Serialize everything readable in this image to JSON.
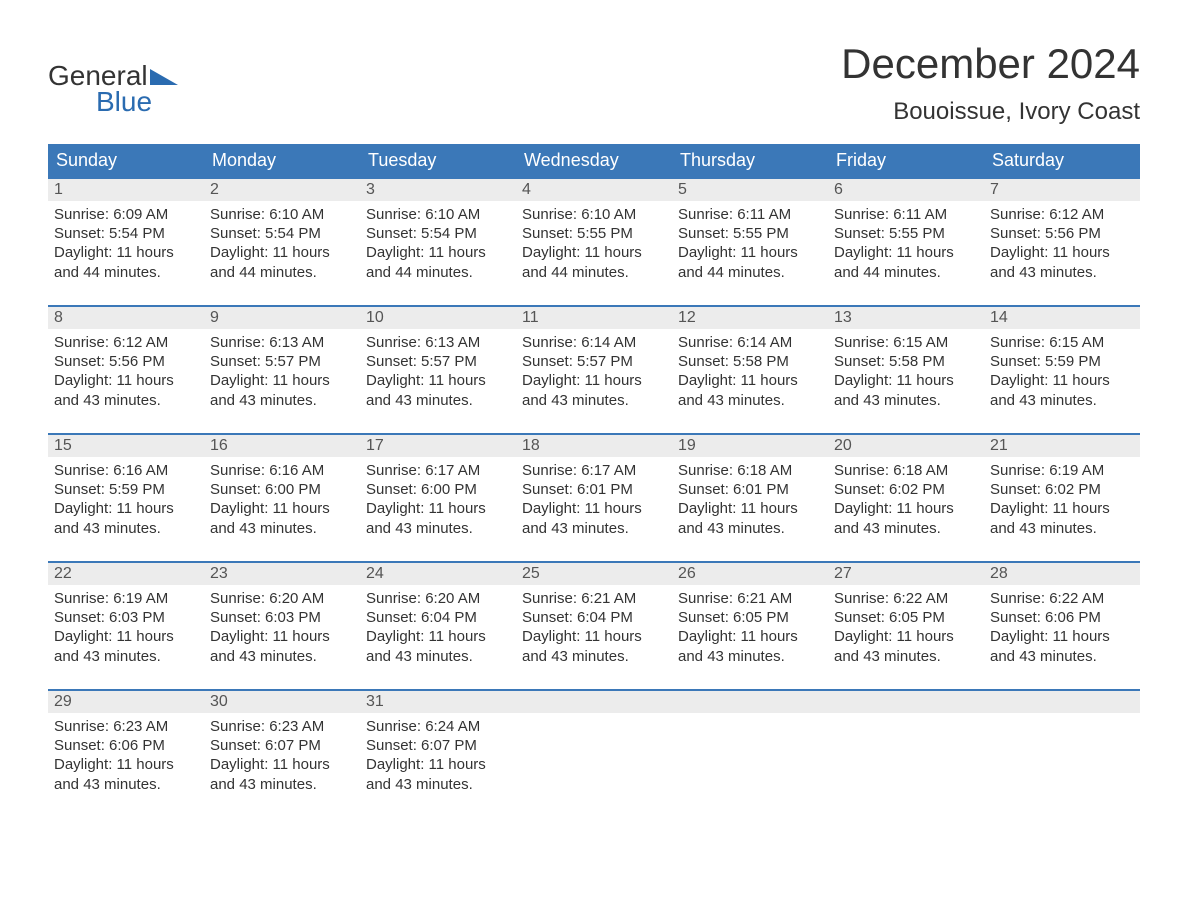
{
  "brand": {
    "word1": "General",
    "word2": "Blue",
    "triangle_color": "#2a6bb0"
  },
  "title": "December 2024",
  "location": "Bouoissue, Ivory Coast",
  "colors": {
    "header_bg": "#3b78b8",
    "header_text": "#ffffff",
    "daybar_bg": "#ececec",
    "daybar_border": "#3b78b8",
    "body_text": "#333333",
    "brand_blue": "#2a6bb0"
  },
  "weekdays": [
    "Sunday",
    "Monday",
    "Tuesday",
    "Wednesday",
    "Thursday",
    "Friday",
    "Saturday"
  ],
  "labels": {
    "sunrise": "Sunrise:",
    "sunset": "Sunset:",
    "daylight": "Daylight:"
  },
  "days": [
    {
      "n": "1",
      "sunrise": "6:09 AM",
      "sunset": "5:54 PM",
      "day_l1": "11 hours",
      "day_l2": "and 44 minutes."
    },
    {
      "n": "2",
      "sunrise": "6:10 AM",
      "sunset": "5:54 PM",
      "day_l1": "11 hours",
      "day_l2": "and 44 minutes."
    },
    {
      "n": "3",
      "sunrise": "6:10 AM",
      "sunset": "5:54 PM",
      "day_l1": "11 hours",
      "day_l2": "and 44 minutes."
    },
    {
      "n": "4",
      "sunrise": "6:10 AM",
      "sunset": "5:55 PM",
      "day_l1": "11 hours",
      "day_l2": "and 44 minutes."
    },
    {
      "n": "5",
      "sunrise": "6:11 AM",
      "sunset": "5:55 PM",
      "day_l1": "11 hours",
      "day_l2": "and 44 minutes."
    },
    {
      "n": "6",
      "sunrise": "6:11 AM",
      "sunset": "5:55 PM",
      "day_l1": "11 hours",
      "day_l2": "and 44 minutes."
    },
    {
      "n": "7",
      "sunrise": "6:12 AM",
      "sunset": "5:56 PM",
      "day_l1": "11 hours",
      "day_l2": "and 43 minutes."
    },
    {
      "n": "8",
      "sunrise": "6:12 AM",
      "sunset": "5:56 PM",
      "day_l1": "11 hours",
      "day_l2": "and 43 minutes."
    },
    {
      "n": "9",
      "sunrise": "6:13 AM",
      "sunset": "5:57 PM",
      "day_l1": "11 hours",
      "day_l2": "and 43 minutes."
    },
    {
      "n": "10",
      "sunrise": "6:13 AM",
      "sunset": "5:57 PM",
      "day_l1": "11 hours",
      "day_l2": "and 43 minutes."
    },
    {
      "n": "11",
      "sunrise": "6:14 AM",
      "sunset": "5:57 PM",
      "day_l1": "11 hours",
      "day_l2": "and 43 minutes."
    },
    {
      "n": "12",
      "sunrise": "6:14 AM",
      "sunset": "5:58 PM",
      "day_l1": "11 hours",
      "day_l2": "and 43 minutes."
    },
    {
      "n": "13",
      "sunrise": "6:15 AM",
      "sunset": "5:58 PM",
      "day_l1": "11 hours",
      "day_l2": "and 43 minutes."
    },
    {
      "n": "14",
      "sunrise": "6:15 AM",
      "sunset": "5:59 PM",
      "day_l1": "11 hours",
      "day_l2": "and 43 minutes."
    },
    {
      "n": "15",
      "sunrise": "6:16 AM",
      "sunset": "5:59 PM",
      "day_l1": "11 hours",
      "day_l2": "and 43 minutes."
    },
    {
      "n": "16",
      "sunrise": "6:16 AM",
      "sunset": "6:00 PM",
      "day_l1": "11 hours",
      "day_l2": "and 43 minutes."
    },
    {
      "n": "17",
      "sunrise": "6:17 AM",
      "sunset": "6:00 PM",
      "day_l1": "11 hours",
      "day_l2": "and 43 minutes."
    },
    {
      "n": "18",
      "sunrise": "6:17 AM",
      "sunset": "6:01 PM",
      "day_l1": "11 hours",
      "day_l2": "and 43 minutes."
    },
    {
      "n": "19",
      "sunrise": "6:18 AM",
      "sunset": "6:01 PM",
      "day_l1": "11 hours",
      "day_l2": "and 43 minutes."
    },
    {
      "n": "20",
      "sunrise": "6:18 AM",
      "sunset": "6:02 PM",
      "day_l1": "11 hours",
      "day_l2": "and 43 minutes."
    },
    {
      "n": "21",
      "sunrise": "6:19 AM",
      "sunset": "6:02 PM",
      "day_l1": "11 hours",
      "day_l2": "and 43 minutes."
    },
    {
      "n": "22",
      "sunrise": "6:19 AM",
      "sunset": "6:03 PM",
      "day_l1": "11 hours",
      "day_l2": "and 43 minutes."
    },
    {
      "n": "23",
      "sunrise": "6:20 AM",
      "sunset": "6:03 PM",
      "day_l1": "11 hours",
      "day_l2": "and 43 minutes."
    },
    {
      "n": "24",
      "sunrise": "6:20 AM",
      "sunset": "6:04 PM",
      "day_l1": "11 hours",
      "day_l2": "and 43 minutes."
    },
    {
      "n": "25",
      "sunrise": "6:21 AM",
      "sunset": "6:04 PM",
      "day_l1": "11 hours",
      "day_l2": "and 43 minutes."
    },
    {
      "n": "26",
      "sunrise": "6:21 AM",
      "sunset": "6:05 PM",
      "day_l1": "11 hours",
      "day_l2": "and 43 minutes."
    },
    {
      "n": "27",
      "sunrise": "6:22 AM",
      "sunset": "6:05 PM",
      "day_l1": "11 hours",
      "day_l2": "and 43 minutes."
    },
    {
      "n": "28",
      "sunrise": "6:22 AM",
      "sunset": "6:06 PM",
      "day_l1": "11 hours",
      "day_l2": "and 43 minutes."
    },
    {
      "n": "29",
      "sunrise": "6:23 AM",
      "sunset": "6:06 PM",
      "day_l1": "11 hours",
      "day_l2": "and 43 minutes."
    },
    {
      "n": "30",
      "sunrise": "6:23 AM",
      "sunset": "6:07 PM",
      "day_l1": "11 hours",
      "day_l2": "and 43 minutes."
    },
    {
      "n": "31",
      "sunrise": "6:24 AM",
      "sunset": "6:07 PM",
      "day_l1": "11 hours",
      "day_l2": "and 43 minutes."
    }
  ],
  "grid": {
    "rows": 5,
    "cols": 7,
    "start_weekday": 0
  }
}
